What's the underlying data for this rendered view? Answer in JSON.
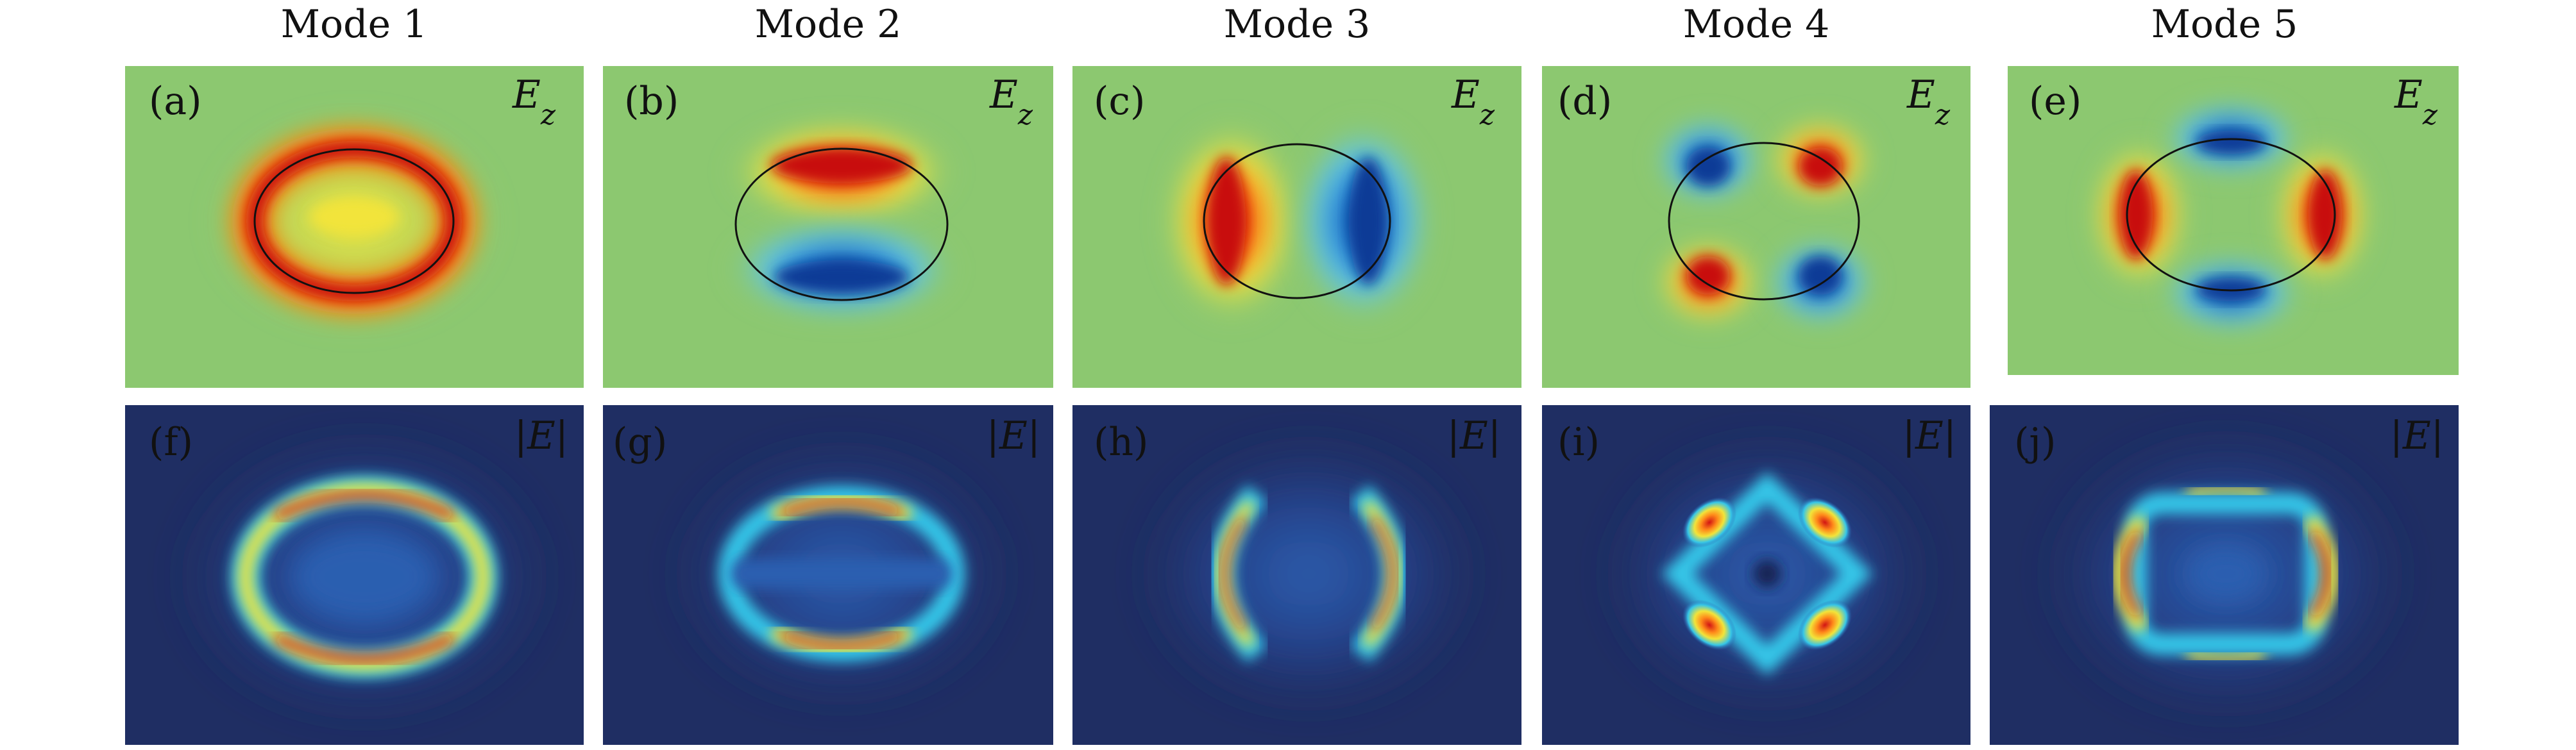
{
  "columns": [
    {
      "title": "Mode 1"
    },
    {
      "title": "Mode 2"
    },
    {
      "title": "Mode 3"
    },
    {
      "title": "Mode 4"
    },
    {
      "title": "Mode 5"
    }
  ],
  "rows": [
    {
      "field": "Ez",
      "field_display": "Ez",
      "panels": [
        "(a)",
        "(b)",
        "(c)",
        "(d)",
        "(e)"
      ]
    },
    {
      "field": "|E|",
      "field_display": "|E|",
      "panels": [
        "(f)",
        "(g)",
        "(h)",
        "(i)",
        "(j)"
      ]
    }
  ],
  "colors": {
    "ez_background": "#8cc870",
    "absE_background": "#1f2e63",
    "positive_peak": "#d21414",
    "negative_peak": "#113a96",
    "mid_yellow": "#f2e43a",
    "cyan": "#35c6e8",
    "boundary": "#111111"
  }
}
